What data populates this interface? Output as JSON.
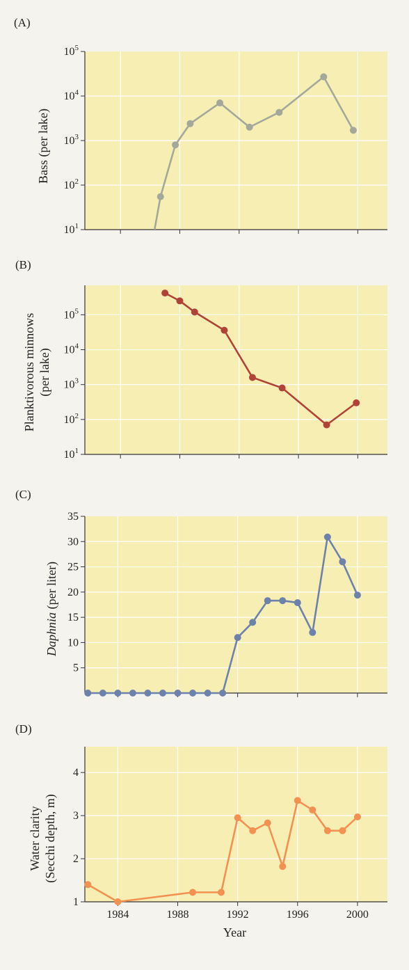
{
  "chart_data": [
    {
      "panel": "(A)",
      "type": "line",
      "yscale": "log",
      "ylabel": "Bass (per lake)",
      "ylim": [
        10,
        100000
      ],
      "yticks": [
        {
          "base": "10",
          "exp": "1"
        },
        {
          "base": "10",
          "exp": "2"
        },
        {
          "base": "10",
          "exp": "3"
        },
        {
          "base": "10",
          "exp": "4"
        },
        {
          "base": "10",
          "exp": "5"
        }
      ],
      "ytick_values": [
        10,
        100,
        1000,
        10000,
        100000
      ],
      "xlim": [
        1981.6,
        2002
      ],
      "x_gridlines": [
        1984,
        1988,
        1992,
        1996,
        2000
      ],
      "grid": true,
      "color": "#a4a89a",
      "lead_in": {
        "x": [
          1986.3,
          1986.7
        ],
        "y": [
          10,
          55
        ]
      },
      "x": [
        1986.7,
        1987.7,
        1988.7,
        1990.7,
        1992.7,
        1994.7,
        1997.7,
        1999.7
      ],
      "y": [
        55,
        800,
        2400,
        7000,
        2000,
        4300,
        27000,
        1700
      ]
    },
    {
      "panel": "(B)",
      "type": "line",
      "yscale": "log",
      "ylabel": "Planktivorous minnows (per lake)",
      "ylabel_lines": [
        "Planktivorous minnows",
        "(per lake)"
      ],
      "ylim": [
        10,
        700000
      ],
      "yticks": [
        {
          "base": "10",
          "exp": "1"
        },
        {
          "base": "10",
          "exp": "2"
        },
        {
          "base": "10",
          "exp": "3"
        },
        {
          "base": "10",
          "exp": "4"
        },
        {
          "base": "10",
          "exp": "5"
        }
      ],
      "ytick_values": [
        10,
        100,
        1000,
        10000,
        100000
      ],
      "xlim": [
        1981.6,
        2002
      ],
      "x_gridlines": [
        1984,
        1988,
        1992,
        1996,
        2000
      ],
      "grid": true,
      "color": "#b14238",
      "x": [
        1987,
        1988,
        1989,
        1991,
        1992.9,
        1994.9,
        1997.9,
        1999.9
      ],
      "y": [
        420000,
        250000,
        120000,
        36000,
        1600,
        800,
        70,
        300
      ]
    },
    {
      "panel": "(C)",
      "type": "line",
      "yscale": "linear",
      "ylabel_italic": "Daphnia",
      "ylabel_rest": " (per liter)",
      "ylim": [
        0,
        35
      ],
      "yticks": [
        5,
        10,
        15,
        20,
        25,
        30,
        35
      ],
      "xlim": [
        1981.8,
        2002
      ],
      "x_gridlines": [
        1984,
        1988,
        1992,
        1996,
        2000
      ],
      "grid": true,
      "color": "#6c82ab",
      "x": [
        1982,
        1983,
        1984,
        1985,
        1986,
        1987,
        1988,
        1989,
        1990,
        1991,
        1992,
        1993,
        1994,
        1995,
        1996,
        1997,
        1998,
        1999,
        2000
      ],
      "y": [
        0,
        0,
        0,
        0,
        0,
        0,
        0,
        0,
        0,
        0,
        11,
        14,
        18.3,
        18.3,
        17.9,
        12,
        30.9,
        26,
        19.4
      ]
    },
    {
      "panel": "(D)",
      "type": "line",
      "yscale": "linear",
      "ylabel": "Water clarity (Secchi depth, m)",
      "ylabel_lines": [
        "Water clarity",
        "(Secchi depth, m)"
      ],
      "ylim": [
        1,
        4.6
      ],
      "yticks": [
        1,
        2,
        3,
        4
      ],
      "xlim": [
        1981.8,
        2002
      ],
      "xticks": [
        1984,
        1988,
        1992,
        1996,
        2000
      ],
      "x_gridlines": [
        1984,
        1988,
        1992,
        1996,
        2000
      ],
      "xlabel": "Year",
      "grid": true,
      "color": "#f39152",
      "x": [
        1982,
        1984,
        1989,
        1990.9,
        1992,
        1993,
        1994,
        1995,
        1996,
        1997,
        1998,
        1999,
        2000
      ],
      "y": [
        1.4,
        1.0,
        1.22,
        1.22,
        2.95,
        2.65,
        2.83,
        1.82,
        3.35,
        3.13,
        2.65,
        2.65,
        2.97
      ]
    }
  ]
}
